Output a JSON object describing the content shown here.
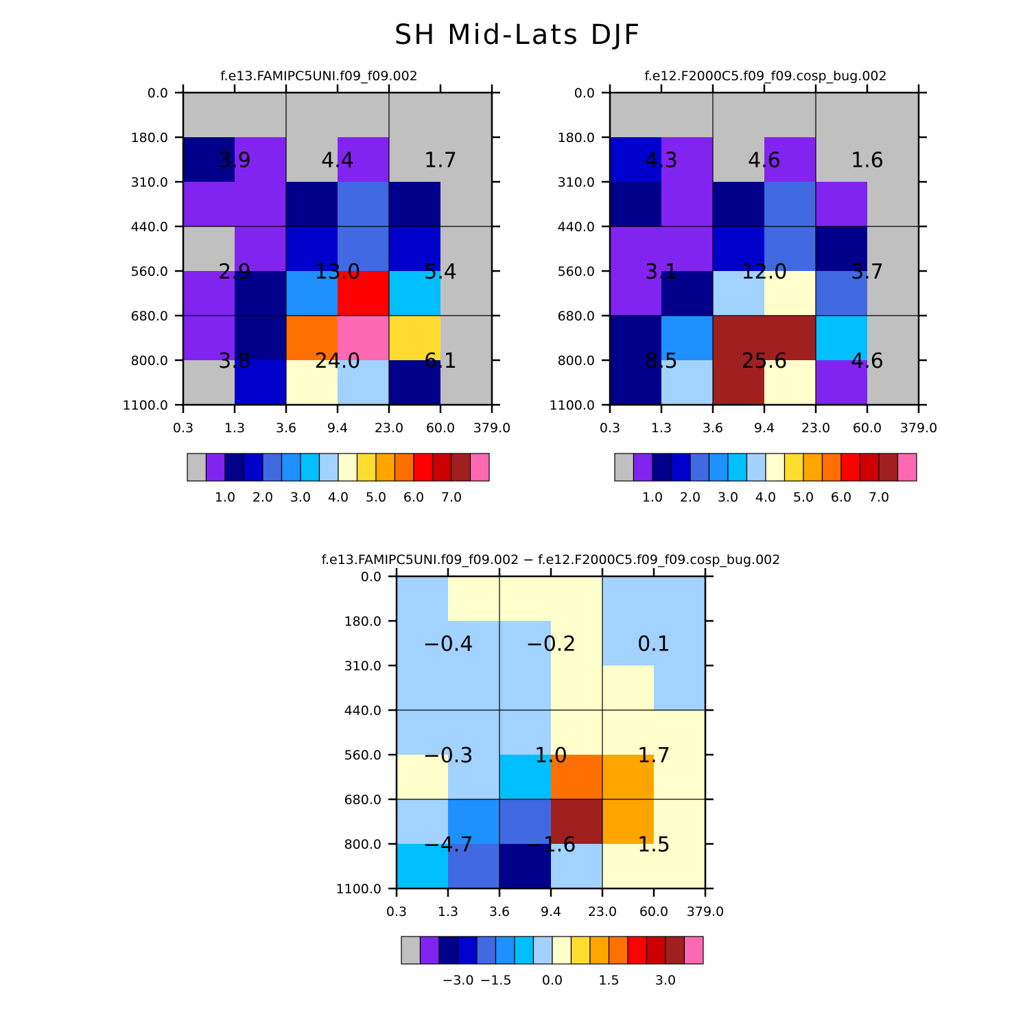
{
  "main_title": "SH Mid-Lats DJF",
  "chart_data": [
    {
      "type": "heatmap",
      "title": "f.e13.FAMIPC5UNI.f09_f09.002",
      "x_ticks": [
        "0.3",
        "1.3",
        "3.6",
        "9.4",
        "23.0",
        "60.0",
        "379.0"
      ],
      "y_ticks": [
        "0.0",
        "180.0",
        "310.0",
        "440.0",
        "560.0",
        "680.0",
        "800.0",
        "1100.0"
      ],
      "cell_colors": [
        [
          "#c0c0c0",
          "#c0c0c0",
          "#c0c0c0",
          "#c0c0c0",
          "#c0c0c0",
          "#c0c0c0"
        ],
        [
          "#00008b",
          "#8224f0",
          "#c0c0c0",
          "#8224f0",
          "#c0c0c0",
          "#c0c0c0"
        ],
        [
          "#8224f0",
          "#8224f0",
          "#00008b",
          "#4169e1",
          "#00008b",
          "#c0c0c0"
        ],
        [
          "#c0c0c0",
          "#8224f0",
          "#0000cd",
          "#4169e1",
          "#0000cd",
          "#c0c0c0"
        ],
        [
          "#8224f0",
          "#00008b",
          "#1e90ff",
          "#ff0000",
          "#00bfff",
          "#c0c0c0"
        ],
        [
          "#8224f0",
          "#00008b",
          "#ff7000",
          "#ff69b4",
          "#ffdd30",
          "#c0c0c0"
        ],
        [
          "#c0c0c0",
          "#0000cd",
          "#ffffcc",
          "#a2d2ff",
          "#00008b",
          "#c0c0c0"
        ]
      ],
      "annotations": [
        [
          "3.9",
          "4.4",
          "1.7"
        ],
        [
          "2.9",
          "13.0",
          "5.4"
        ],
        [
          "3.8",
          "24.0",
          "6.1"
        ]
      ],
      "colorbar": {
        "colors": [
          "#c0c0c0",
          "#8224f0",
          "#00008b",
          "#0000cd",
          "#4169e1",
          "#1e90ff",
          "#00bfff",
          "#a2d2ff",
          "#ffffcc",
          "#ffdd30",
          "#ffa500",
          "#ff7000",
          "#ff0000",
          "#cc0000",
          "#a02020",
          "#ff69b4"
        ],
        "labels": [
          "1.0",
          "2.0",
          "3.0",
          "4.0",
          "5.0",
          "6.0",
          "7.0"
        ],
        "label_boundaries": [
          2,
          4,
          6,
          8,
          10,
          12,
          14
        ]
      }
    },
    {
      "type": "heatmap",
      "title": "f.e12.F2000C5.f09_f09.cosp_bug.002",
      "x_ticks": [
        "0.3",
        "1.3",
        "3.6",
        "9.4",
        "23.0",
        "60.0",
        "379.0"
      ],
      "y_ticks": [
        "0.0",
        "180.0",
        "310.0",
        "440.0",
        "560.0",
        "680.0",
        "800.0",
        "1100.0"
      ],
      "cell_colors": [
        [
          "#c0c0c0",
          "#c0c0c0",
          "#c0c0c0",
          "#c0c0c0",
          "#c0c0c0",
          "#c0c0c0"
        ],
        [
          "#0000cd",
          "#8224f0",
          "#c0c0c0",
          "#8224f0",
          "#c0c0c0",
          "#c0c0c0"
        ],
        [
          "#00008b",
          "#8224f0",
          "#00008b",
          "#4169e1",
          "#8224f0",
          "#c0c0c0"
        ],
        [
          "#8224f0",
          "#8224f0",
          "#0000cd",
          "#4169e1",
          "#00008b",
          "#c0c0c0"
        ],
        [
          "#8224f0",
          "#00008b",
          "#a2d2ff",
          "#ffffcc",
          "#4169e1",
          "#c0c0c0"
        ],
        [
          "#00008b",
          "#1e90ff",
          "#a02020",
          "#a02020",
          "#00bfff",
          "#c0c0c0"
        ],
        [
          "#00008b",
          "#a2d2ff",
          "#a02020",
          "#ffffcc",
          "#8224f0",
          "#c0c0c0"
        ]
      ],
      "annotations": [
        [
          "4.3",
          "4.6",
          "1.6"
        ],
        [
          "3.1",
          "12.0",
          "3.7"
        ],
        [
          "8.5",
          "25.6",
          "4.6"
        ]
      ],
      "colorbar": {
        "colors": [
          "#c0c0c0",
          "#8224f0",
          "#00008b",
          "#0000cd",
          "#4169e1",
          "#1e90ff",
          "#00bfff",
          "#a2d2ff",
          "#ffffcc",
          "#ffdd30",
          "#ffa500",
          "#ff7000",
          "#ff0000",
          "#cc0000",
          "#a02020",
          "#ff69b4"
        ],
        "labels": [
          "1.0",
          "2.0",
          "3.0",
          "4.0",
          "5.0",
          "6.0",
          "7.0"
        ],
        "label_boundaries": [
          2,
          4,
          6,
          8,
          10,
          12,
          14
        ]
      }
    },
    {
      "type": "heatmap",
      "title": "f.e13.FAMIPC5UNI.f09_f09.002 − f.e12.F2000C5.f09_f09.cosp_bug.002",
      "x_ticks": [
        "0.3",
        "1.3",
        "3.6",
        "9.4",
        "23.0",
        "60.0",
        "379.0"
      ],
      "y_ticks": [
        "0.0",
        "180.0",
        "310.0",
        "440.0",
        "560.0",
        "680.0",
        "800.0",
        "1100.0"
      ],
      "cell_colors": [
        [
          "#a2d2ff",
          "#ffffcc",
          "#ffffcc",
          "#ffffcc",
          "#a2d2ff",
          "#a2d2ff"
        ],
        [
          "#a2d2ff",
          "#a2d2ff",
          "#a2d2ff",
          "#ffffcc",
          "#a2d2ff",
          "#a2d2ff"
        ],
        [
          "#a2d2ff",
          "#a2d2ff",
          "#a2d2ff",
          "#ffffcc",
          "#ffffcc",
          "#a2d2ff"
        ],
        [
          "#a2d2ff",
          "#a2d2ff",
          "#a2d2ff",
          "#ffffcc",
          "#ffffcc",
          "#ffffcc"
        ],
        [
          "#ffffcc",
          "#a2d2ff",
          "#00bfff",
          "#ff7000",
          "#ffa500",
          "#ffffcc"
        ],
        [
          "#a2d2ff",
          "#1e90ff",
          "#4169e1",
          "#a02020",
          "#ffa500",
          "#ffffcc"
        ],
        [
          "#00bfff",
          "#4169e1",
          "#00008b",
          "#a2d2ff",
          "#ffffcc",
          "#ffffcc"
        ]
      ],
      "annotations": [
        [
          "−0.4",
          "−0.2",
          "0.1"
        ],
        [
          "−0.3",
          "1.0",
          "1.7"
        ],
        [
          "−4.7",
          "−1.6",
          "1.5"
        ]
      ],
      "colorbar": {
        "colors": [
          "#c0c0c0",
          "#8224f0",
          "#00008b",
          "#0000cd",
          "#4169e1",
          "#1e90ff",
          "#00bfff",
          "#a2d2ff",
          "#ffffcc",
          "#ffdd30",
          "#ffa500",
          "#ff7000",
          "#ff0000",
          "#cc0000",
          "#a02020",
          "#ff69b4"
        ],
        "labels": [
          "−3.0",
          "−1.5",
          "0.0",
          "1.5",
          "3.0"
        ],
        "label_boundaries": [
          3,
          5,
          8,
          11,
          14
        ]
      }
    }
  ]
}
